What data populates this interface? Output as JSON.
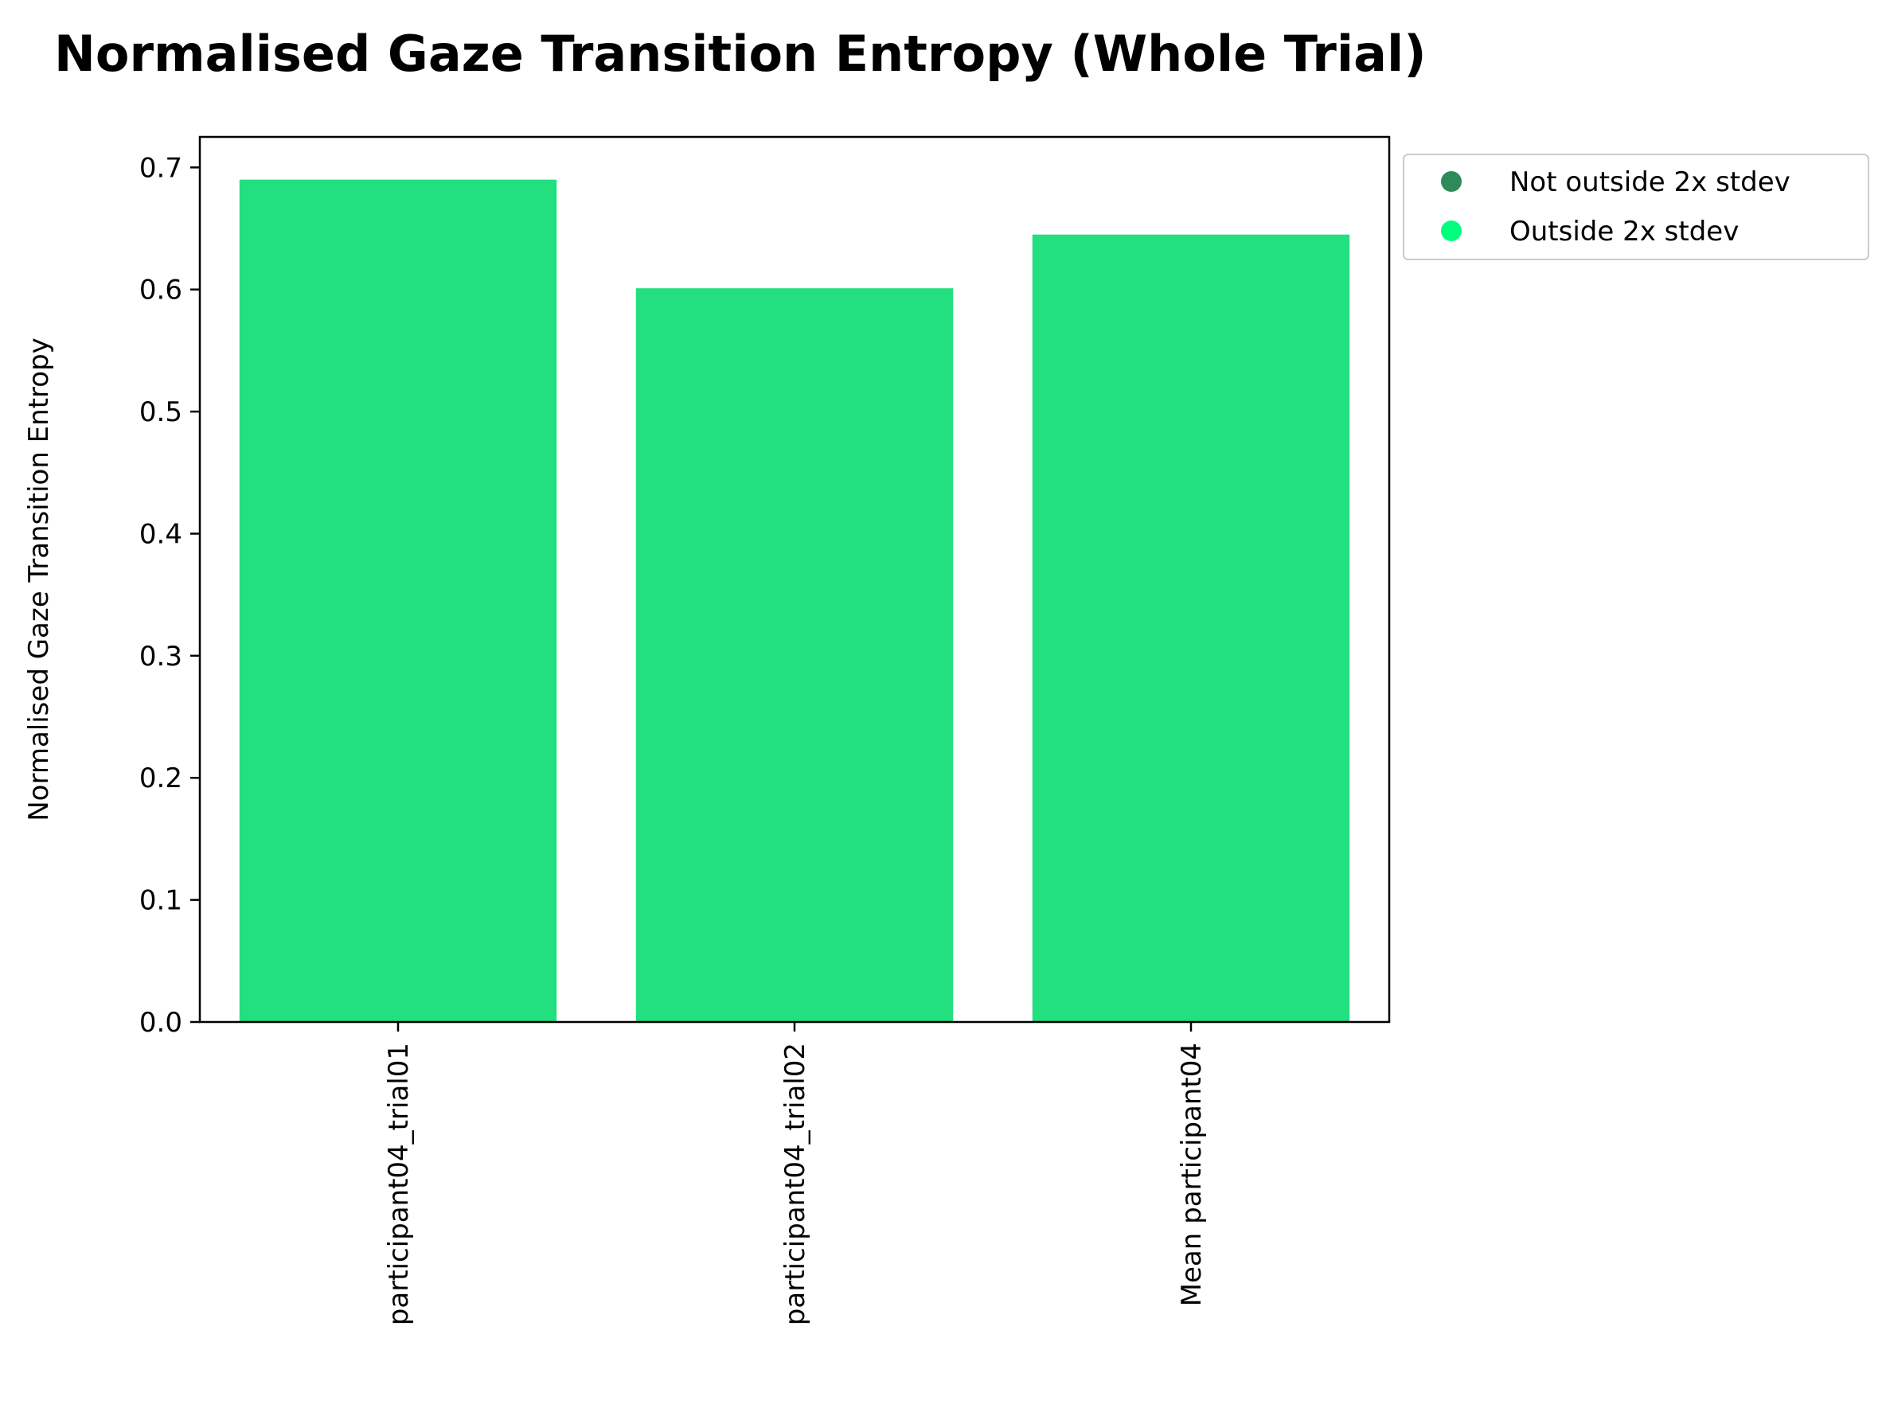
{
  "chart_data": {
    "type": "bar",
    "title": "Normalised Gaze Transition Entropy (Whole Trial)",
    "xlabel": "",
    "ylabel": "Normalised Gaze Transition Entropy",
    "categories": [
      "participant04_trial01",
      "participant04_trial02",
      "Mean participant04"
    ],
    "values": [
      0.69,
      0.601,
      0.645
    ],
    "ylim": [
      0,
      0.725
    ],
    "yticks": [
      "0.0",
      "0.1",
      "0.2",
      "0.3",
      "0.4",
      "0.5",
      "0.6",
      "0.7"
    ],
    "ytick_values": [
      0,
      0.1,
      0.2,
      0.3,
      0.4,
      0.5,
      0.6,
      0.7
    ],
    "grid": false,
    "bar_color": "#22df80",
    "legend": {
      "placement": "outside upper right",
      "entries": [
        {
          "label": "Not outside 2x stdev",
          "color": "#2e8b57"
        },
        {
          "label": "Outside 2x stdev",
          "color": "#00ff7f"
        }
      ]
    }
  }
}
